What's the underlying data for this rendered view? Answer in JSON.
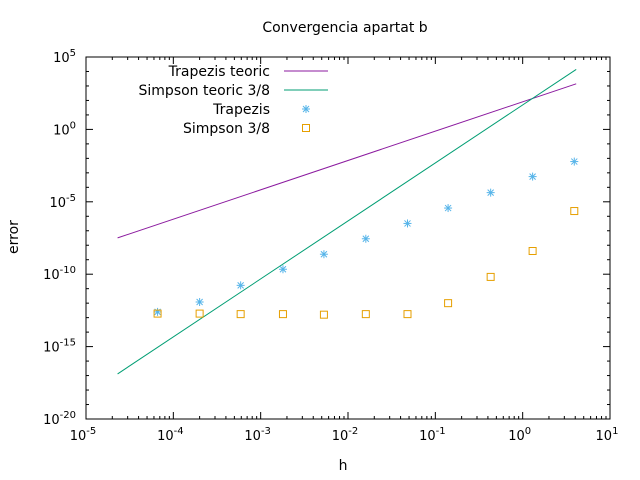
{
  "chart_data": {
    "type": "line",
    "title": "Convergencia apartat b",
    "xlabel": "h",
    "ylabel": "error",
    "xscale": "log",
    "yscale": "log",
    "xlim": [
      1e-05,
      10
    ],
    "ylim": [
      1e-20,
      100000.0
    ],
    "x_ticks": [
      {
        "base": "10",
        "exp": "-5"
      },
      {
        "base": "10",
        "exp": "-4"
      },
      {
        "base": "10",
        "exp": "-3"
      },
      {
        "base": "10",
        "exp": "-2"
      },
      {
        "base": "10",
        "exp": "-1"
      },
      {
        "base": "10",
        "exp": "0"
      },
      {
        "base": "10",
        "exp": "1"
      }
    ],
    "y_ticks": [
      {
        "base": "10",
        "exp": "-20"
      },
      {
        "base": "10",
        "exp": "-15"
      },
      {
        "base": "10",
        "exp": "-10"
      },
      {
        "base": "10",
        "exp": "-5"
      },
      {
        "base": "10",
        "exp": "0"
      },
      {
        "base": "10",
        "exp": "5"
      }
    ],
    "legend_position": "top-left",
    "grid": false,
    "series": [
      {
        "name": "Trapezis teoric",
        "style": "line",
        "color": "#8b1a9f",
        "x": [
          2.3e-05,
          4.1
        ],
        "y": [
          3.2e-08,
          1400.0
        ]
      },
      {
        "name": "Simpson teoric 3/8",
        "style": "line",
        "color": "#009e73",
        "x": [
          2.3e-05,
          4.1
        ],
        "y": [
          1.3e-17,
          14000.0
        ]
      },
      {
        "name": "Trapezis",
        "style": "points",
        "marker": "asterisk",
        "color": "#56b4e9",
        "x": [
          6.6e-05,
          0.0002,
          0.00059,
          0.0018,
          0.0053,
          0.016,
          0.048,
          0.14,
          0.43,
          1.3,
          3.9
        ],
        "y": [
          2.5e-13,
          1.2e-12,
          1.7e-11,
          2.2e-10,
          2.4e-09,
          2.8e-08,
          3.2e-07,
          3.7e-06,
          4.3e-05,
          0.00055,
          0.006
        ]
      },
      {
        "name": "Simpson 3/8",
        "style": "points",
        "marker": "square",
        "color": "#e69f00",
        "x": [
          6.6e-05,
          0.0002,
          0.00059,
          0.0018,
          0.0053,
          0.016,
          0.048,
          0.14,
          0.43,
          1.3,
          3.9
        ],
        "y": [
          1.9e-13,
          1.9e-13,
          1.75e-13,
          1.75e-13,
          1.6e-13,
          1.75e-13,
          1.75e-13,
          1e-12,
          6.5e-11,
          4e-09,
          2.3e-06
        ]
      }
    ]
  }
}
